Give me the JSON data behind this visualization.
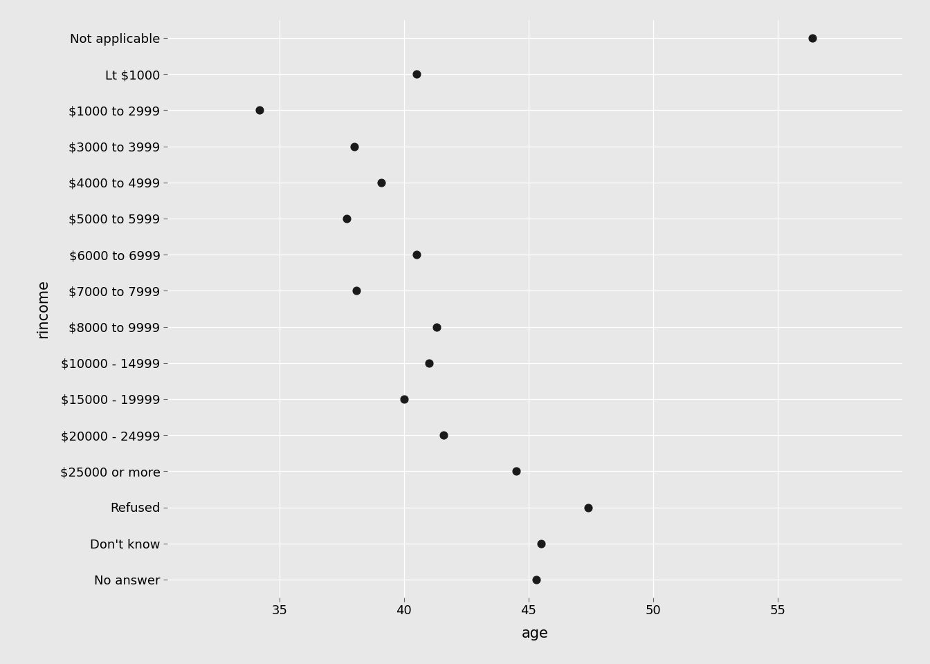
{
  "categories": [
    "Not applicable",
    "Lt $1000",
    "$1000 to 2999",
    "$3000 to 3999",
    "$4000 to 4999",
    "$5000 to 5999",
    "$6000 to 6999",
    "$7000 to 7999",
    "$8000 to 9999",
    "$10000 - 14999",
    "$15000 - 19999",
    "$20000 - 24999",
    "$25000 or more",
    "Refused",
    "Don't know",
    "No answer"
  ],
  "age_values": [
    56.4,
    40.5,
    34.2,
    38.0,
    39.1,
    37.7,
    40.5,
    38.1,
    41.3,
    41.0,
    40.0,
    41.6,
    44.5,
    47.4,
    45.5,
    45.3
  ],
  "point_color": "#1a1a1a",
  "background_color": "#e8e8e8",
  "grid_color": "#ffffff",
  "xlabel": "age",
  "ylabel": "rincome",
  "axis_label_fontsize": 15,
  "tick_fontsize": 13,
  "xlim": [
    30.5,
    60
  ],
  "xticks": [
    35,
    40,
    45,
    50,
    55
  ]
}
